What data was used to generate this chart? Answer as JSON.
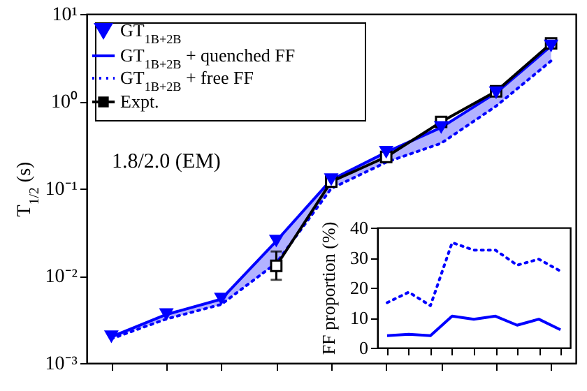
{
  "chart_data": [
    {
      "type": "line",
      "ylabel": "T$_{1/2}$ (s)",
      "annotations": [
        "1.8/2.0 (EM)"
      ],
      "categories": [
        null,
        null,
        null,
        null,
        null,
        null,
        null,
        null,
        null
      ],
      "log": true,
      "ylim": [
        0.001,
        10
      ],
      "yticks": [
        {
          "value": 0.001,
          "label": "10⁻³"
        },
        {
          "value": 0.01,
          "label": "10⁻²"
        },
        {
          "value": 0.1,
          "label": "10⁻¹"
        },
        {
          "value": 1,
          "label": "10⁰"
        },
        {
          "value": 10,
          "label": "10¹"
        }
      ],
      "tick_labels": "y",
      "legend": "top left",
      "series": [
        {
          "name": "GT$_{1B+2B}$",
          "type": "scatter",
          "marker": "triangle",
          "color": "#0000ff",
          "values": [
            0.002,
            0.0036,
            0.0054,
            0.025,
            0.126,
            0.26,
            0.5,
            1.25,
            4.3
          ]
        },
        {
          "name": "GT$_{1B+2B}$ + quenched FF",
          "type": "line",
          "marker": "none",
          "line_style": "solid",
          "color": "#0000ff",
          "values": [
            0.002,
            0.0036,
            0.0054,
            0.025,
            0.126,
            0.26,
            0.5,
            1.25,
            4.3
          ],
          "lower": [
            0.0019,
            0.0032,
            0.0047,
            0.014,
            0.1,
            0.2,
            0.33,
            0.88,
            2.9
          ],
          "upper": [
            0.002,
            0.0036,
            0.0054,
            0.025,
            0.126,
            0.26,
            0.5,
            1.25,
            4.3
          ]
        },
        {
          "name": "GT$_{1B+2B}$ + free FF",
          "type": "line",
          "marker": "none",
          "line_style": "dotted",
          "color": "#0000ff",
          "values": [
            0.0019,
            0.0032,
            0.0047,
            0.014,
            0.1,
            0.2,
            0.33,
            0.88,
            2.9
          ]
        },
        {
          "name": "Expt.",
          "type": "line",
          "marker": "square",
          "line_style": "solid",
          "color": "#000000",
          "values": [
            null,
            null,
            null,
            0.013,
            0.12,
            0.23,
            0.58,
            1.3,
            4.6
          ],
          "errors": [
            null,
            null,
            null,
            [
              0.009,
              0.019
            ],
            null,
            null,
            null,
            null,
            null
          ]
        }
      ]
    },
    {
      "type": "line",
      "ylabel": "FF proportion (%)",
      "categories": [
        null,
        null,
        null,
        null,
        null,
        null,
        null,
        null,
        null
      ],
      "ylim": [
        0,
        40
      ],
      "yticks": [
        0,
        10,
        20,
        30,
        40
      ],
      "tick_labels": "y",
      "series": [
        {
          "line_style": "dotted",
          "color": "#0000ff",
          "values": [
            15,
            18.5,
            14,
            35,
            32.5,
            32.5,
            27.5,
            29.5,
            25.5
          ]
        },
        {
          "line_style": "solid",
          "color": "#0000ff",
          "values": [
            4,
            4.5,
            4,
            10.5,
            9.5,
            10.5,
            7.5,
            9.5,
            6
          ]
        }
      ]
    }
  ]
}
